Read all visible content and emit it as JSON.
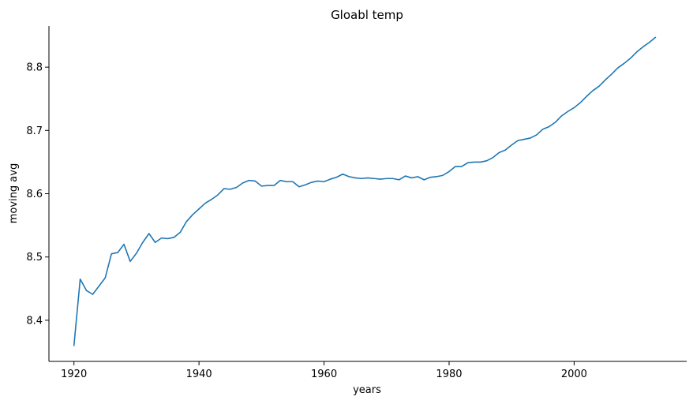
{
  "chart_data": {
    "type": "line",
    "title": "Gloabl temp",
    "xlabel": "years",
    "ylabel": "moving avg",
    "xlim": [
      1916,
      2018
    ],
    "ylim": [
      8.335,
      8.865
    ],
    "xticks": [
      1920,
      1940,
      1960,
      1980,
      2000
    ],
    "yticks": [
      8.4,
      8.5,
      8.6,
      8.7,
      8.8
    ],
    "ytick_labels": [
      "8.4",
      "8.5",
      "8.6",
      "8.7",
      "8.8"
    ],
    "grid": false,
    "line_color": "#1f77b4",
    "series": [
      {
        "x": [
          1920,
          1921,
          1922,
          1923,
          1924,
          1925,
          1926,
          1927,
          1928,
          1929,
          1930,
          1931,
          1932,
          1933,
          1934,
          1935,
          1936,
          1937,
          1938,
          1939,
          1940,
          1941,
          1942,
          1943,
          1944,
          1945,
          1946,
          1947,
          1948,
          1949,
          1950,
          1951,
          1952,
          1953,
          1954,
          1955,
          1956,
          1957,
          1958,
          1959,
          1960,
          1961,
          1962,
          1963,
          1964,
          1965,
          1966,
          1967,
          1968,
          1969,
          1970,
          1971,
          1972,
          1973,
          1974,
          1975,
          1976,
          1977,
          1978,
          1979,
          1980,
          1981,
          1982,
          1983,
          1984,
          1985,
          1986,
          1987,
          1988,
          1989,
          1990,
          1991,
          1992,
          1993,
          1994,
          1995,
          1996,
          1997,
          1998,
          1999,
          2000,
          2001,
          2002,
          2003,
          2004,
          2005,
          2006,
          2007,
          2008,
          2009,
          2010,
          2011,
          2012,
          2013
        ],
        "values": [
          8.36,
          8.465,
          8.447,
          8.441,
          8.454,
          8.467,
          8.505,
          8.507,
          8.52,
          8.493,
          8.506,
          8.523,
          8.537,
          8.523,
          8.53,
          8.529,
          8.531,
          8.539,
          8.556,
          8.567,
          8.576,
          8.585,
          8.591,
          8.598,
          8.608,
          8.607,
          8.61,
          8.617,
          8.621,
          8.62,
          8.612,
          8.613,
          8.613,
          8.621,
          8.619,
          8.619,
          8.611,
          8.614,
          8.618,
          8.62,
          8.619,
          8.623,
          8.626,
          8.631,
          8.627,
          8.625,
          8.624,
          8.625,
          8.624,
          8.623,
          8.624,
          8.624,
          8.622,
          8.628,
          8.625,
          8.627,
          8.622,
          8.626,
          8.627,
          8.629,
          8.635,
          8.643,
          8.643,
          8.649,
          8.65,
          8.65,
          8.652,
          8.657,
          8.665,
          8.669,
          8.677,
          8.684,
          8.686,
          8.688,
          8.693,
          8.702,
          8.706,
          8.713,
          8.723,
          8.73,
          8.736,
          8.744,
          8.754,
          8.763,
          8.77,
          8.78,
          8.789,
          8.799,
          8.806,
          8.814,
          8.824,
          8.832,
          8.839,
          8.847
        ]
      }
    ]
  }
}
